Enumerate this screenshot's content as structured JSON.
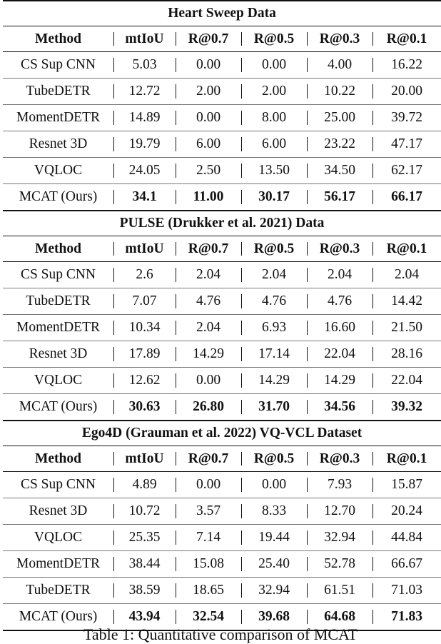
{
  "headers": [
    "Method",
    "mtIoU",
    "R@0.7",
    "R@0.5",
    "R@0.3",
    "R@0.1"
  ],
  "sections": [
    {
      "title": "Heart Sweep Data",
      "rows": [
        {
          "method": "CS Sup CNN",
          "values": [
            "5.03",
            "0.00",
            "0.00",
            "4.00",
            "16.22"
          ],
          "bold": false
        },
        {
          "method": "TubeDETR",
          "values": [
            "12.72",
            "2.00",
            "2.00",
            "10.22",
            "20.00"
          ],
          "bold": false
        },
        {
          "method": "MomentDETR",
          "values": [
            "14.89",
            "0.00",
            "8.00",
            "25.00",
            "39.72"
          ],
          "bold": false
        },
        {
          "method": "Resnet 3D",
          "values": [
            "19.79",
            "6.00",
            "6.00",
            "23.22",
            "47.17"
          ],
          "bold": false
        },
        {
          "method": "VQLOC",
          "values": [
            "24.05",
            "2.50",
            "13.50",
            "34.50",
            "62.17"
          ],
          "bold": false
        },
        {
          "method": "MCAT (Ours)",
          "values": [
            "34.1",
            "11.00",
            "30.17",
            "56.17",
            "66.17"
          ],
          "bold": true
        }
      ]
    },
    {
      "title": "PULSE (Drukker et al. 2021) Data",
      "rows": [
        {
          "method": "CS Sup CNN",
          "values": [
            "2.6",
            "2.04",
            "2.04",
            "2.04",
            "2.04"
          ],
          "bold": false
        },
        {
          "method": "TubeDETR",
          "values": [
            "7.07",
            "4.76",
            "4.76",
            "4.76",
            "14.42"
          ],
          "bold": false
        },
        {
          "method": "MomentDETR",
          "values": [
            "10.34",
            "2.04",
            "6.93",
            "16.60",
            "21.50"
          ],
          "bold": false
        },
        {
          "method": "Resnet 3D",
          "values": [
            "17.89",
            "14.29",
            "17.14",
            "22.04",
            "28.16"
          ],
          "bold": false
        },
        {
          "method": "VQLOC",
          "values": [
            "12.62",
            "0.00",
            "14.29",
            "14.29",
            "22.04"
          ],
          "bold": false
        },
        {
          "method": "MCAT (Ours)",
          "values": [
            "30.63",
            "26.80",
            "31.70",
            "34.56",
            "39.32"
          ],
          "bold": true
        }
      ]
    },
    {
      "title": "Ego4D (Grauman et al. 2022) VQ-VCL Dataset",
      "rows": [
        {
          "method": "CS Sup CNN",
          "values": [
            "4.89",
            "0.00",
            "0.00",
            "7.93",
            "15.87"
          ],
          "bold": false
        },
        {
          "method": "Resnet 3D",
          "values": [
            "10.72",
            "3.57",
            "8.33",
            "12.70",
            "20.24"
          ],
          "bold": false
        },
        {
          "method": "VQLOC",
          "values": [
            "25.35",
            "7.14",
            "19.44",
            "32.94",
            "44.84"
          ],
          "bold": false
        },
        {
          "method": "MomentDETR",
          "values": [
            "38.44",
            "15.08",
            "25.40",
            "52.78",
            "66.67"
          ],
          "bold": false
        },
        {
          "method": "TubeDETR",
          "values": [
            "38.59",
            "18.65",
            "32.94",
            "61.51",
            "71.03"
          ],
          "bold": false
        },
        {
          "method": "MCAT (Ours)",
          "values": [
            "43.94",
            "32.54",
            "39.68",
            "64.68",
            "71.83"
          ],
          "bold": true
        }
      ]
    }
  ],
  "caption": "Table 1: Quantitative comparison of MCAT"
}
